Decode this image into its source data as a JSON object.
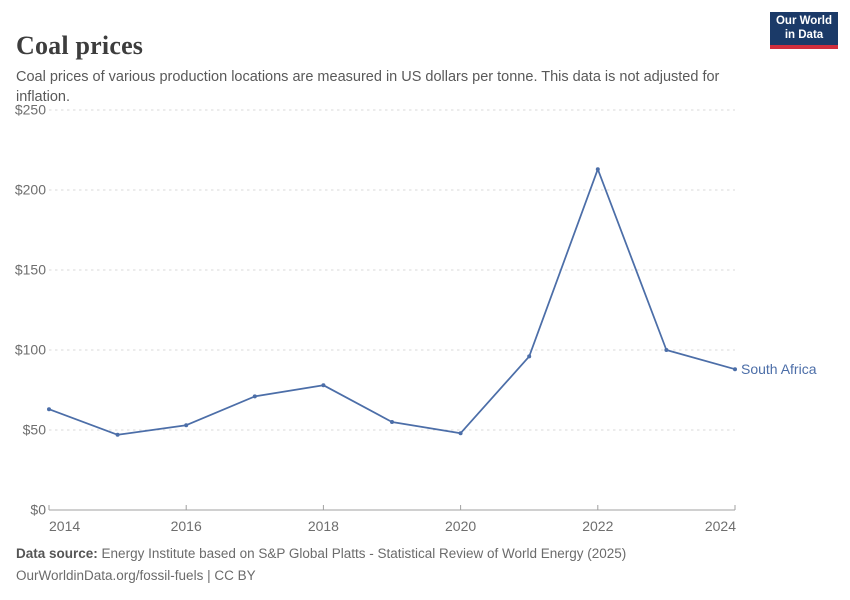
{
  "header": {
    "title": "Coal prices",
    "subtitle": "Coal prices of various production locations are measured in US dollars per tonne. This data is not adjusted for inflation.",
    "logo": {
      "line1": "Our World",
      "line2": "in Data",
      "bg_color": "#1b3a68",
      "bar_color": "#d02e3d"
    }
  },
  "chart_data": {
    "type": "line",
    "title": "Coal prices",
    "x": [
      2014,
      2015,
      2016,
      2017,
      2018,
      2019,
      2020,
      2021,
      2022,
      2023,
      2024
    ],
    "series": [
      {
        "name": "South Africa",
        "color": "#4c6ea8",
        "values": [
          63,
          47,
          53,
          71,
          78,
          55,
          48,
          96,
          213,
          100,
          88
        ]
      }
    ],
    "xlabel": "",
    "ylabel": "",
    "xlim": [
      2014,
      2024
    ],
    "ylim": [
      0,
      250
    ],
    "xtick_values": [
      2014,
      2016,
      2018,
      2020,
      2022,
      2024
    ],
    "xtick_labels": [
      "2014",
      "2016",
      "2018",
      "2020",
      "2022",
      "2024"
    ],
    "ytick_values": [
      0,
      50,
      100,
      150,
      200,
      250
    ],
    "ytick_labels": [
      "$0",
      "$50",
      "$100",
      "$150",
      "$200",
      "$250"
    ],
    "grid": "horizontal-dashed",
    "legend_position": "end-of-line-label",
    "colors": {
      "gridline": "#d9d9d9",
      "axis": "#a0a0a0",
      "tick_label": "#6e6e6e"
    }
  },
  "footer": {
    "datasource_label": "Data source:",
    "datasource_text": "Energy Institute based on S&P Global Platts - Statistical Review of World Energy (2025)",
    "license_line": "OurWorldinData.org/fossil-fuels | CC BY"
  }
}
